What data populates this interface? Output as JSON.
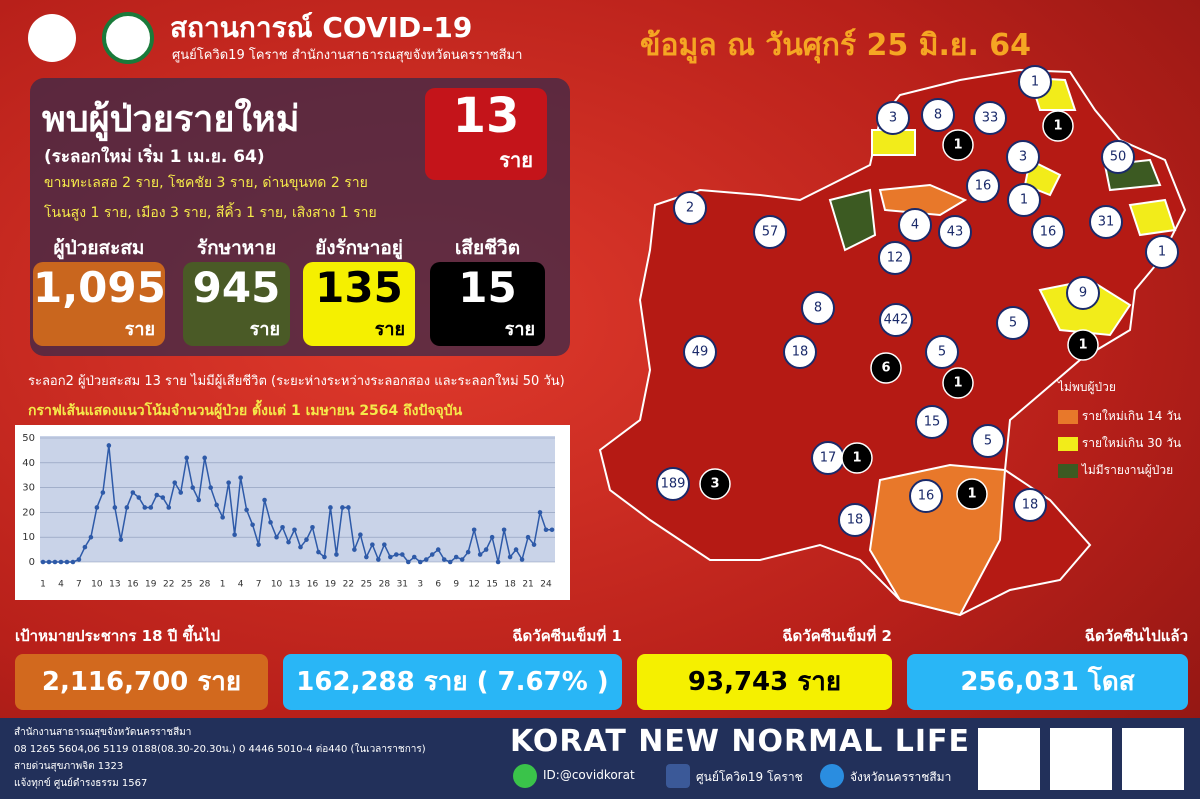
{
  "header": {
    "title": "สถานการณ์ COVID-19",
    "subtitle": "ศูนย์โควิด19 โคราช สำนักงานสาธารณสุขจังหวัดนครราชสีมา",
    "date": "ข้อมูล ณ วันศุกร์ 25 มิ.ย. 64"
  },
  "new_cases": {
    "title": "พบผู้ป่วยรายใหม่",
    "note": "(ระลอกใหม่ เริ่ม 1 เม.ย. 64)",
    "count": "13",
    "unit": "ราย",
    "detail": [
      "ขามทะเลสอ 2 ราย, โชคชัย 3 ราย, ด่านขุนทด 2 ราย",
      "โนนสูง 1 ราย, เมือง 3 ราย, สีคิ้ว 1 ราย, เสิงสาง 1 ราย"
    ]
  },
  "stats": [
    {
      "label": "ผู้ป่วยสะสม",
      "value": "1,095",
      "unit": "ราย"
    },
    {
      "label": "รักษาหาย",
      "value": "945",
      "unit": "ราย"
    },
    {
      "label": "ยังรักษาอยู่",
      "value": "135",
      "unit": "ราย"
    },
    {
      "label": "เสียชีวิต",
      "value": "15",
      "unit": "ราย"
    }
  ],
  "wave_note": "ระลอก2 ผู้ป่วยสะสม 13 ราย ไม่มีผู้เสียชีวิต (ระยะห่างระหว่างระลอกสอง และระลอกใหม่ 50 วัน)",
  "chart_data": {
    "type": "line",
    "title": "กราฟเส้นแสดงแนวโน้มจำนวนผู้ป่วย ตั้งแต่ 1 เมษายน 2564 ถึงปัจจุบัน",
    "categories": [
      "1",
      null,
      null,
      "4",
      null,
      null,
      "7",
      null,
      null,
      "10",
      null,
      null,
      "13",
      null,
      null,
      "16",
      null,
      null,
      "19",
      null,
      null,
      "22",
      null,
      null,
      "25",
      null,
      null,
      "28",
      null,
      null,
      "1",
      null,
      null,
      "4",
      null,
      null,
      "7",
      null,
      null,
      "10",
      null,
      null,
      "13",
      null,
      null,
      "16",
      null,
      null,
      "19",
      null,
      null,
      "22",
      null,
      null,
      "25",
      null,
      null,
      "28",
      null,
      null,
      "31",
      null,
      null,
      "3",
      null,
      null,
      "6",
      null,
      null,
      "9",
      null,
      null,
      "12",
      null,
      null,
      "15",
      null,
      null,
      "18",
      null,
      null,
      "21",
      null,
      null,
      "24",
      null
    ],
    "values": [
      0,
      0,
      0,
      0,
      0,
      0,
      1,
      6,
      10,
      22,
      28,
      47,
      22,
      9,
      22,
      28,
      26,
      22,
      22,
      27,
      26,
      22,
      32,
      28,
      42,
      30,
      25,
      42,
      30,
      23,
      18,
      32,
      11,
      34,
      21,
      15,
      7,
      25,
      16,
      10,
      14,
      8,
      13,
      6,
      9,
      14,
      4,
      2,
      22,
      3,
      22,
      22,
      5,
      11,
      2,
      7,
      1,
      7,
      2,
      3,
      3,
      0,
      2,
      0,
      1,
      3,
      5,
      1,
      0,
      2,
      1,
      4,
      13,
      3,
      5,
      10,
      0,
      13,
      2,
      5,
      1,
      10,
      7,
      20,
      13,
      13
    ],
    "color": "#2e5aa8",
    "ylim": [
      0,
      50
    ],
    "yticks": [
      0,
      10,
      20,
      30,
      40,
      50
    ],
    "grid": true
  },
  "map": {
    "cases": [
      "1",
      "3",
      "8",
      "33",
      "3",
      "50",
      "16",
      "1",
      "16",
      "31",
      "1",
      "2",
      "57",
      "4",
      "43",
      "12",
      "8",
      "442",
      "5",
      "5",
      "49",
      "18",
      "15",
      "5",
      "17",
      "189",
      "18",
      "16",
      "18",
      "9"
    ],
    "deaths": [
      "1",
      "1",
      "1",
      "6",
      "1",
      "1",
      "3",
      "1"
    ],
    "legend": [
      "ไม่พบผู้ป่วย",
      "รายใหม่เกิน 14 วัน",
      "รายใหม่เกิน 30 วัน",
      "ไม่มีรายงานผู้ป่วย"
    ]
  },
  "vaccine": [
    {
      "label": "เป้าหมายประชากร 18 ปี ขึ้นไป",
      "value": "2,116,700 ราย"
    },
    {
      "label": "ฉีดวัคซีนเข็มที่ 1",
      "value": "162,288 ราย ( 7.67% )"
    },
    {
      "label": "ฉีดวัคซีนเข็มที่ 2",
      "value": "93,743 ราย"
    },
    {
      "label": "ฉีดวัคซีนไปแล้ว",
      "value": "256,031 โดส"
    }
  ],
  "footer": {
    "lines": [
      "สำนักงานสาธารณสุขจังหวัดนครราชสีมา",
      "08 1265 5604,06 5119 0188(08.30-20.30น.) 0 4446 5010-4 ต่อ440 (ในเวลาราชการ)",
      "สายด่วนสุขภาพจิต 1323",
      "แจ้งทุกข์ ศูนย์ดำรงธรรม 1567"
    ],
    "slogan": "KORAT NEW NORMAL LIFE",
    "line_id": "ID:@covidkorat",
    "facebook": "ศูนย์โควิด19 โคราช",
    "web": "จังหวัดนครราชสีมา"
  }
}
